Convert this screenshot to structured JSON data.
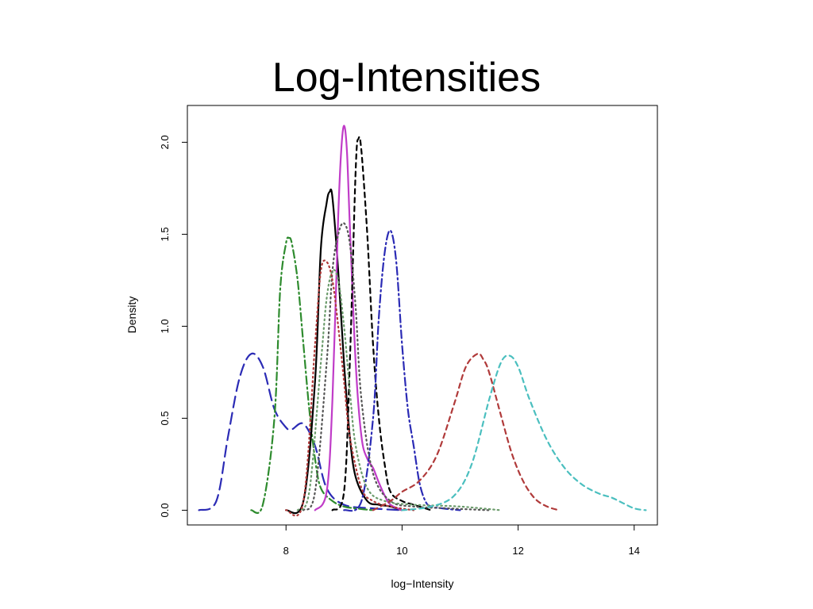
{
  "slide": {
    "title": "Log-Intensities"
  },
  "chart_data": {
    "type": "line",
    "title": "",
    "xlabel": "log−Intensity",
    "ylabel": "Density",
    "xlim": [
      6.3,
      14.4
    ],
    "ylim": [
      -0.08,
      2.2
    ],
    "xticks": [
      "8",
      "10",
      "12",
      "14"
    ],
    "yticks": [
      "0.0",
      "0.5",
      "1.0",
      "1.5",
      "2.0"
    ],
    "grid": false,
    "legend": "none",
    "series": [
      {
        "color": "#2b2bb5",
        "dash": "long",
        "x": [
          6.5,
          6.8,
          7.0,
          7.2,
          7.4,
          7.6,
          7.8,
          8.0,
          8.1,
          8.3,
          8.5,
          8.7,
          9.0,
          9.5,
          10.0
        ],
        "y": [
          0.0,
          0.05,
          0.4,
          0.72,
          0.85,
          0.78,
          0.55,
          0.45,
          0.44,
          0.47,
          0.35,
          0.12,
          0.03,
          0.01,
          0.0
        ]
      },
      {
        "color": "#2e8b2e",
        "dash": "dashdot",
        "x": [
          7.4,
          7.6,
          7.8,
          7.9,
          8.0,
          8.05,
          8.1,
          8.2,
          8.3,
          8.4,
          8.5,
          8.6,
          8.8,
          9.0,
          9.2,
          9.5
        ],
        "y": [
          0.0,
          0.03,
          0.5,
          1.2,
          1.45,
          1.48,
          1.45,
          1.25,
          0.9,
          0.55,
          0.28,
          0.12,
          0.05,
          0.02,
          0.01,
          0.0
        ]
      },
      {
        "color": "#000000",
        "dash": "solid",
        "x": [
          8.0,
          8.3,
          8.5,
          8.6,
          8.7,
          8.75,
          8.8,
          8.9,
          9.0,
          9.1,
          9.2,
          9.4,
          9.6,
          9.8,
          10.0
        ],
        "y": [
          0.0,
          0.05,
          0.7,
          1.42,
          1.67,
          1.73,
          1.7,
          1.3,
          0.8,
          0.4,
          0.18,
          0.05,
          0.03,
          0.02,
          0.0
        ]
      },
      {
        "color": "#c03cc8",
        "dash": "solid",
        "x": [
          8.5,
          8.7,
          8.8,
          8.9,
          8.95,
          9.0,
          9.05,
          9.1,
          9.2,
          9.3,
          9.4,
          9.5,
          9.6,
          9.7,
          9.8,
          10.0
        ],
        "y": [
          0.0,
          0.1,
          0.6,
          1.6,
          1.95,
          2.09,
          1.95,
          1.55,
          0.8,
          0.4,
          0.28,
          0.23,
          0.15,
          0.08,
          0.03,
          0.0
        ]
      },
      {
        "color": "#000000",
        "dash": "dashed",
        "x": [
          8.8,
          9.0,
          9.1,
          9.2,
          9.25,
          9.3,
          9.4,
          9.5,
          9.6,
          9.7,
          9.8,
          10.0,
          10.2,
          10.5
        ],
        "y": [
          0.0,
          0.1,
          0.8,
          1.85,
          2.02,
          1.95,
          1.5,
          0.9,
          0.5,
          0.25,
          0.1,
          0.05,
          0.03,
          0.0
        ]
      },
      {
        "color": "#2b2bb5",
        "dash": "dashdot",
        "x": [
          9.0,
          9.3,
          9.5,
          9.6,
          9.7,
          9.8,
          9.9,
          10.0,
          10.1,
          10.2,
          10.3,
          10.4,
          10.5,
          10.7,
          11.0
        ],
        "y": [
          0.0,
          0.05,
          0.5,
          1.05,
          1.4,
          1.52,
          1.35,
          0.9,
          0.55,
          0.35,
          0.15,
          0.05,
          0.02,
          0.01,
          0.0
        ]
      },
      {
        "color": "#555555",
        "dash": "dotted",
        "x": [
          8.3,
          8.5,
          8.7,
          8.8,
          8.9,
          9.0,
          9.1,
          9.2,
          9.3,
          9.5,
          9.8,
          10.2,
          10.8,
          11.5
        ],
        "y": [
          0.0,
          0.1,
          0.8,
          1.3,
          1.5,
          1.56,
          1.45,
          1.1,
          0.6,
          0.2,
          0.05,
          0.02,
          0.01,
          0.0
        ]
      },
      {
        "color": "#6b9b6b",
        "dash": "dotted",
        "x": [
          8.2,
          8.4,
          8.6,
          8.7,
          8.8,
          8.9,
          9.0,
          9.1,
          9.2,
          9.4,
          9.7,
          10.2,
          11.0,
          11.7
        ],
        "y": [
          0.0,
          0.1,
          0.8,
          1.15,
          1.3,
          1.25,
          1.0,
          0.65,
          0.35,
          0.12,
          0.05,
          0.03,
          0.02,
          0.0
        ]
      },
      {
        "color": "#b03a3a",
        "dash": "dotted",
        "x": [
          8.0,
          8.3,
          8.5,
          8.6,
          8.7,
          8.8,
          8.9,
          9.0,
          9.1,
          9.3,
          9.5,
          9.8,
          10.2
        ],
        "y": [
          0.0,
          0.05,
          0.9,
          1.3,
          1.35,
          1.25,
          1.0,
          0.7,
          0.4,
          0.12,
          0.05,
          0.02,
          0.0
        ]
      },
      {
        "color": "#b03a3a",
        "dash": "dashed",
        "x": [
          9.5,
          9.8,
          10.0,
          10.3,
          10.6,
          10.9,
          11.1,
          11.3,
          11.4,
          11.5,
          11.7,
          11.9,
          12.1,
          12.3,
          12.5,
          12.7
        ],
        "y": [
          0.0,
          0.05,
          0.1,
          0.16,
          0.3,
          0.58,
          0.78,
          0.85,
          0.82,
          0.75,
          0.52,
          0.3,
          0.15,
          0.06,
          0.02,
          0.0
        ]
      },
      {
        "color": "#4bbfbf",
        "dash": "dashed",
        "x": [
          10.0,
          10.5,
          10.9,
          11.2,
          11.5,
          11.7,
          11.85,
          12.0,
          12.2,
          12.5,
          12.8,
          13.1,
          13.4,
          13.6,
          13.8,
          14.0,
          14.2
        ],
        "y": [
          0.0,
          0.02,
          0.08,
          0.25,
          0.6,
          0.8,
          0.84,
          0.78,
          0.6,
          0.38,
          0.23,
          0.14,
          0.09,
          0.07,
          0.04,
          0.01,
          0.0
        ]
      }
    ]
  }
}
